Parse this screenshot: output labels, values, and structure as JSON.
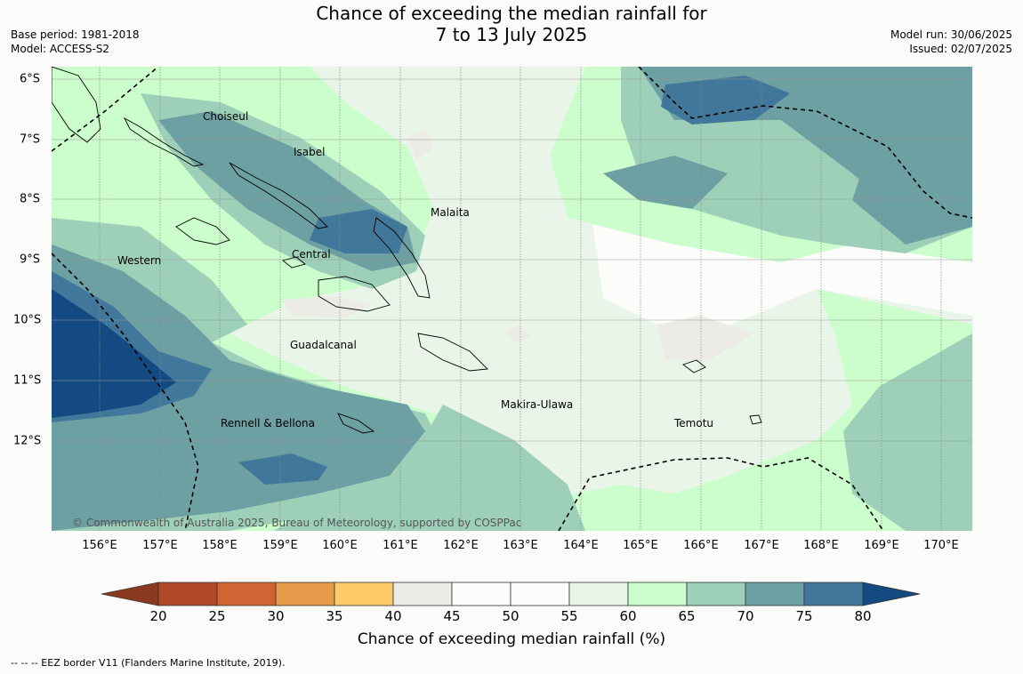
{
  "title": {
    "line1": "Chance of exceeding the median rainfall for",
    "line2": "7 to 13 July 2025"
  },
  "meta_left": {
    "base_period": "Base period: 1981-2018",
    "model": "Model: ACCESS-S2"
  },
  "meta_right": {
    "model_run": "Model run: 30/06/2025",
    "issued": "Issued: 02/07/2025"
  },
  "map": {
    "lon_ticks": [
      "156°E",
      "157°E",
      "158°E",
      "159°E",
      "160°E",
      "161°E",
      "162°E",
      "163°E",
      "164°E",
      "165°E",
      "166°E",
      "167°E",
      "168°E",
      "169°E",
      "170°E"
    ],
    "lat_ticks": [
      "6°S",
      "7°S",
      "8°S",
      "9°S",
      "10°S",
      "11°S",
      "12°S"
    ],
    "region_labels": [
      "Choiseul",
      "Isabel",
      "Malaita",
      "Western",
      "Central",
      "Guadalcanal",
      "Makira-Ulawa",
      "Temotu",
      "Rennell & Bellona"
    ],
    "copyright": "© Commonwealth of Australia 2025, Bureau of Meteorology, supported by COSPPac"
  },
  "colorbar": {
    "labels": [
      "20",
      "25",
      "30",
      "35",
      "40",
      "45",
      "50",
      "55",
      "60",
      "65",
      "70",
      "75",
      "80"
    ],
    "colors": {
      "low_arrow": "#8c3a1f",
      "20_25": "#b1482a",
      "25_30": "#d06433",
      "30_35": "#e69a4a",
      "35_40": "#fecb6a",
      "40_45": "#edebe6",
      "45_50": "#fcfcfa",
      "50_55": "#fcfcfa",
      "55_60": "#eaf5ea",
      "60_65": "#ccfdcc",
      "65_70": "#9ed0b9",
      "70_75": "#6ca0a3",
      "75_80": "#41779a",
      "high_arrow": "#144a82"
    },
    "title": "Chance of exceeding median rainfall (%)"
  },
  "footnote": "--  --  -- EEZ border V11 (Flanders Marine Institute, 2019)."
}
